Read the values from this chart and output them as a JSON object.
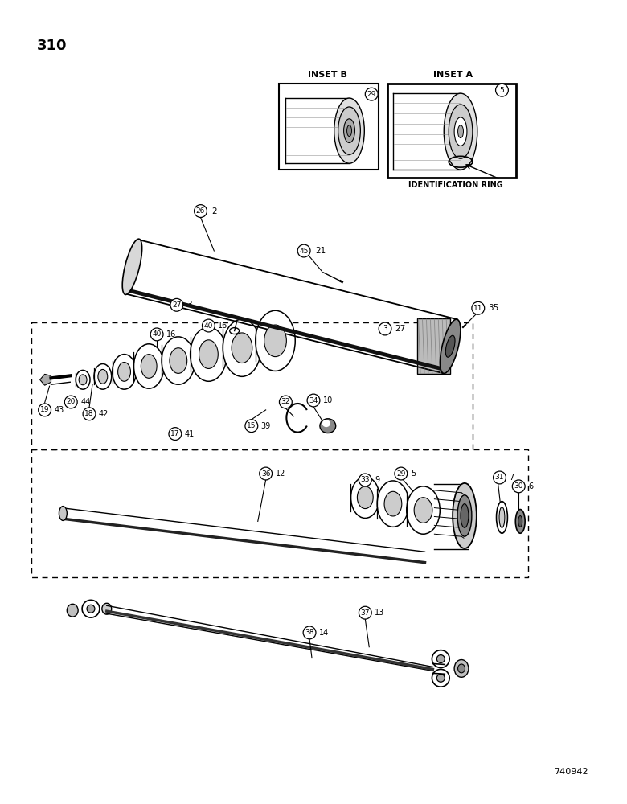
{
  "page_number": "310",
  "figure_number": "740942",
  "bg": "#ffffff",
  "lc": "#000000",
  "inset_b_label": "INSET B",
  "inset_a_label": "INSET A",
  "id_ring_label": "IDENTIFICATION RING"
}
